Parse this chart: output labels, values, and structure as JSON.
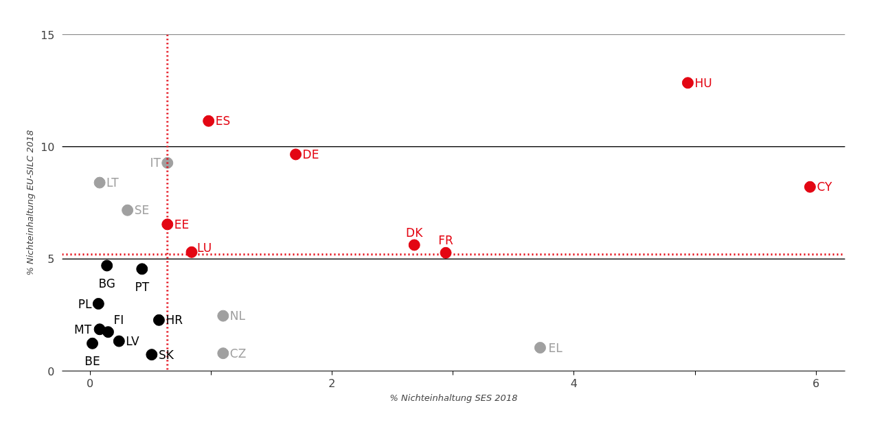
{
  "chart_data": {
    "type": "scatter",
    "xlabel": "% Nichteinhaltung SES 2018",
    "ylabel": "% Nichteinhaltung EU-SILC 2018",
    "xlim": [
      -0.23,
      6.24
    ],
    "ylim": [
      0,
      15
    ],
    "xticks": [
      0,
      {
        "value": 1,
        "label": null
      },
      2,
      {
        "value": 3,
        "label": null
      },
      4,
      {
        "value": 5,
        "label": null
      },
      6
    ],
    "yticks": [
      0,
      5,
      10,
      15
    ],
    "grid": "y",
    "marker": "circle",
    "series": [
      {
        "color": "#e30613",
        "x": [
          4.94,
          5.95,
          0.98,
          1.7,
          0.64,
          0.84,
          2.68,
          2.94
        ],
        "values": [
          12.85,
          8.21,
          11.15,
          9.66,
          6.54,
          5.3,
          5.62,
          5.27
        ]
      },
      {
        "color": "#a0a0a0",
        "x": [
          0.64,
          0.08,
          0.31,
          1.1,
          1.1,
          3.72
        ],
        "values": [
          9.28,
          8.4,
          7.17,
          2.46,
          0.79,
          1.04
        ]
      },
      {
        "color": "#000000",
        "x": [
          0.14,
          0.43,
          0.07,
          0.57,
          0.08,
          0.15,
          0.24,
          0.02,
          0.51
        ],
        "values": [
          4.7,
          4.55,
          3.0,
          2.27,
          1.86,
          1.74,
          1.33,
          1.23,
          0.73
        ]
      }
    ],
    "ref_lines": [
      {
        "axis": "x",
        "value": 0.64,
        "color": "#e30613",
        "line_style": "dotted"
      },
      {
        "axis": "y",
        "value": 5.2,
        "color": "#e30613",
        "line_style": "dotted"
      }
    ],
    "annotations": [
      {
        "text": "HU",
        "x": 4.94,
        "y": 12.85
      },
      {
        "text": "CY",
        "x": 5.95,
        "y": 8.21
      },
      {
        "text": "ES",
        "x": 0.98,
        "y": 11.15
      },
      {
        "text": "DE",
        "x": 1.7,
        "y": 9.66
      },
      {
        "text": "EE",
        "x": 0.64,
        "y": 6.54
      },
      {
        "text": "LU",
        "x": 0.84,
        "y": 5.3
      },
      {
        "text": "DK",
        "x": 2.68,
        "y": 5.62
      },
      {
        "text": "FR",
        "x": 2.94,
        "y": 5.27
      },
      {
        "text": "IT",
        "x": 0.64,
        "y": 9.28
      },
      {
        "text": "LT",
        "x": 0.08,
        "y": 8.4
      },
      {
        "text": "SE",
        "x": 0.31,
        "y": 7.17
      },
      {
        "text": "NL",
        "x": 1.1,
        "y": 2.46
      },
      {
        "text": "CZ",
        "x": 1.1,
        "y": 0.79
      },
      {
        "text": "EL",
        "x": 3.72,
        "y": 1.04
      },
      {
        "text": "BG",
        "x": 0.14,
        "y": 4.7
      },
      {
        "text": "PT",
        "x": 0.43,
        "y": 4.55
      },
      {
        "text": "PL",
        "x": 0.07,
        "y": 3.0
      },
      {
        "text": "HR",
        "x": 0.57,
        "y": 2.27
      },
      {
        "text": "MT",
        "x": 0.08,
        "y": 1.86
      },
      {
        "text": "FI",
        "x": 0.15,
        "y": 1.74
      },
      {
        "text": "LV",
        "x": 0.24,
        "y": 1.33
      },
      {
        "text": "BE",
        "x": 0.02,
        "y": 1.23
      },
      {
        "text": "SK",
        "x": 0.51,
        "y": 0.73
      }
    ]
  }
}
